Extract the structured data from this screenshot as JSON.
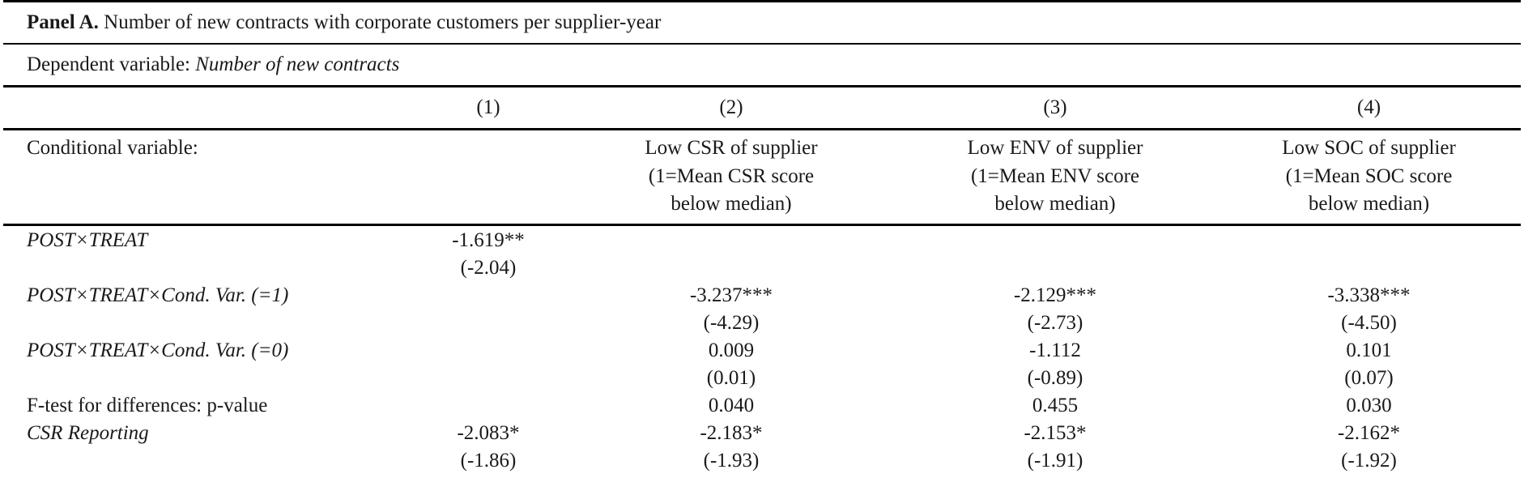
{
  "panel": {
    "label": "Panel A.",
    "title": "Number of new contracts with corporate customers per supplier-year"
  },
  "dependent": {
    "label": "Dependent variable:",
    "value": "Number of new contracts"
  },
  "columns": [
    "(1)",
    "(2)",
    "(3)",
    "(4)"
  ],
  "conditional": {
    "label": "Conditional variable:",
    "cells": [
      [],
      [
        "Low CSR of supplier",
        "(1=Mean CSR score",
        "below median)"
      ],
      [
        "Low ENV of supplier",
        "(1=Mean ENV score",
        "below median)"
      ],
      [
        "Low SOC of supplier",
        "(1=Mean SOC score",
        "below median)"
      ]
    ]
  },
  "rows": [
    {
      "label": "POST×TREAT",
      "italic": true,
      "coef": [
        "-1.619**",
        "",
        "",
        ""
      ],
      "tstat": [
        "(-2.04)",
        "",
        "",
        ""
      ]
    },
    {
      "label": "POST×TREAT×Cond. Var. (=1)",
      "italic": true,
      "coef": [
        "",
        "-3.237***",
        "-2.129***",
        "-3.338***"
      ],
      "tstat": [
        "",
        "(-4.29)",
        "(-2.73)",
        "(-4.50)"
      ]
    },
    {
      "label": "POST×TREAT×Cond. Var. (=0)",
      "italic": true,
      "coef": [
        "",
        "0.009",
        "-1.112",
        "0.101"
      ],
      "tstat": [
        "",
        "(0.01)",
        "(-0.89)",
        "(0.07)"
      ]
    },
    {
      "label": "F-test for differences: p-value",
      "italic": false,
      "coef": [
        "",
        "0.040",
        "0.455",
        "0.030"
      ],
      "tstat": null
    },
    {
      "label": "CSR Reporting",
      "italic": true,
      "coef": [
        "-2.083*",
        "-2.183*",
        "-2.153*",
        "-2.162*"
      ],
      "tstat": [
        "(-1.86)",
        "(-1.93)",
        "(-1.91)",
        "(-1.92)"
      ]
    }
  ]
}
